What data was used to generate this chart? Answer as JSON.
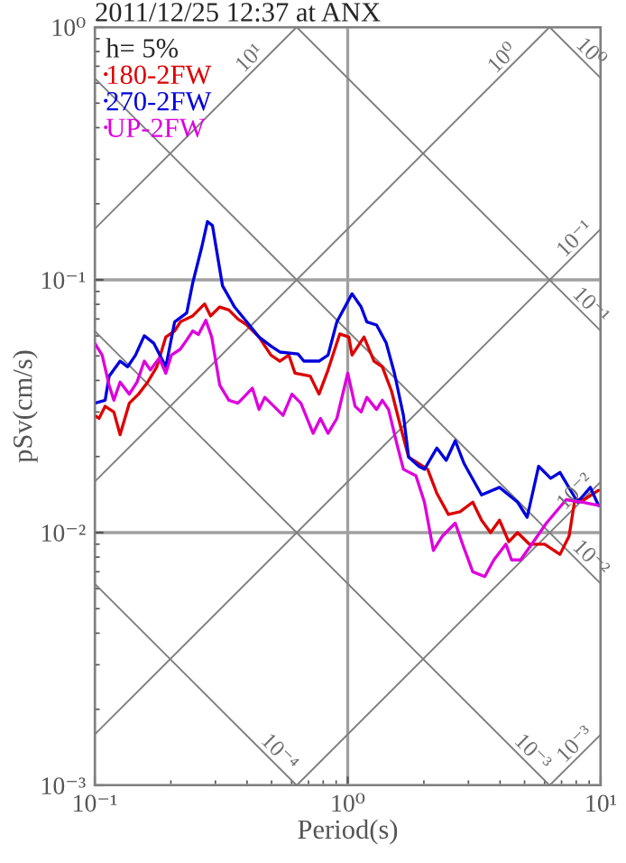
{
  "chart_data": {
    "type": "line",
    "title": "2011/12/25 12:37 at ANX",
    "xlabel": "Period(s)",
    "ylabel": "pSv(cm/s)",
    "legend_title": "h= 5%",
    "log": "xy",
    "grid": true,
    "legend": "top left",
    "xlim": [
      0.1,
      10
    ],
    "xticks": [
      {
        "value": 0.1,
        "label": "10⁻¹"
      },
      {
        "value": 1,
        "label": "10⁰"
      },
      {
        "value": 10,
        "label": "10¹"
      }
    ],
    "ylim": [
      0.001,
      1
    ],
    "yticks": [
      {
        "value": 0.001,
        "label": "10⁻³"
      },
      {
        "value": 0.01,
        "label": "10⁻²"
      },
      {
        "value": 0.1,
        "label": "10⁻¹"
      },
      {
        "value": 1,
        "label": "10⁰"
      }
    ],
    "series": [
      {
        "color": "#808080",
        "x": [
          0.1,
          0.628
        ],
        "values": [
          0.159,
          1
        ]
      },
      {
        "color": "#808080",
        "x": [
          0.1,
          6.28
        ],
        "values": [
          0.0159,
          1
        ]
      },
      {
        "color": "#808080",
        "x": [
          0.1,
          10
        ],
        "values": [
          0.00159,
          0.159
        ]
      },
      {
        "color": "#808080",
        "x": [
          0.628,
          10
        ],
        "values": [
          0.001,
          0.0159
        ]
      },
      {
        "color": "#808080",
        "x": [
          6.28,
          10
        ],
        "values": [
          0.001,
          0.00159
        ]
      },
      {
        "color": "#808080",
        "x": [
          6.28,
          10
        ],
        "values": [
          1,
          0.628
        ]
      },
      {
        "color": "#808080",
        "x": [
          0.628,
          10
        ],
        "values": [
          1,
          0.0628
        ]
      },
      {
        "color": "#808080",
        "x": [
          0.1,
          10
        ],
        "values": [
          0.628,
          0.00628
        ]
      },
      {
        "color": "#808080",
        "x": [
          0.1,
          6.28
        ],
        "values": [
          0.0628,
          0.001
        ]
      },
      {
        "color": "#808080",
        "x": [
          0.1,
          0.628
        ],
        "values": [
          0.00628,
          0.001
        ]
      },
      {
        "name": "180-2FW",
        "color": "#dd0000",
        "x": [
          0.1,
          0.104,
          0.11,
          0.119,
          0.126,
          0.137,
          0.149,
          0.162,
          0.176,
          0.191,
          0.207,
          0.218,
          0.244,
          0.272,
          0.287,
          0.312,
          0.339,
          0.368,
          0.399,
          0.446,
          0.497,
          0.539,
          0.585,
          0.619,
          0.711,
          0.77,
          0.836,
          0.93,
          1.01,
          1.04,
          1.16,
          1.27,
          1.37,
          1.49,
          1.62,
          1.74,
          2.07,
          2.25,
          2.5,
          2.78,
          3.12,
          3.38,
          3.67,
          3.98,
          4.33,
          4.69,
          5.22,
          6.0,
          6.9,
          7.5,
          7.9,
          8.6,
          9.8
        ],
        "values": [
          0.0291,
          0.0283,
          0.0316,
          0.03,
          0.0244,
          0.0325,
          0.0353,
          0.0394,
          0.0453,
          0.0594,
          0.0628,
          0.0682,
          0.072,
          0.0803,
          0.072,
          0.0781,
          0.076,
          0.07,
          0.0663,
          0.0594,
          0.0504,
          0.0477,
          0.0504,
          0.0427,
          0.0416,
          0.0353,
          0.044,
          0.0611,
          0.0594,
          0.0504,
          0.0594,
          0.0477,
          0.0453,
          0.0363,
          0.0261,
          0.0199,
          0.0178,
          0.0143,
          0.0118,
          0.0121,
          0.0132,
          0.0112,
          0.01,
          0.0112,
          0.0092,
          0.01,
          0.009,
          0.009,
          0.0082,
          0.0097,
          0.0135,
          0.0135,
          0.0147
        ]
      },
      {
        "name": "270-2FW",
        "color": "#0000dd",
        "x": [
          0.1,
          0.11,
          0.114,
          0.126,
          0.135,
          0.145,
          0.157,
          0.171,
          0.191,
          0.207,
          0.231,
          0.244,
          0.265,
          0.279,
          0.292,
          0.32,
          0.357,
          0.399,
          0.446,
          0.497,
          0.539,
          0.636,
          0.671,
          0.77,
          0.836,
          0.906,
          1.04,
          1.13,
          1.19,
          1.3,
          1.42,
          1.53,
          1.66,
          1.74,
          1.91,
          2.01,
          2.25,
          2.45,
          2.66,
          2.88,
          3.38,
          3.98,
          4.69,
          5.12,
          5.68,
          6.34,
          6.9,
          8.1,
          9.1,
          9.8
        ],
        "values": [
          0.0325,
          0.0334,
          0.0416,
          0.0477,
          0.0453,
          0.0504,
          0.0601,
          0.0562,
          0.0453,
          0.0682,
          0.074,
          0.0972,
          0.135,
          0.17,
          0.164,
          0.0947,
          0.0781,
          0.0682,
          0.0594,
          0.0547,
          0.0518,
          0.0509,
          0.0477,
          0.0477,
          0.0504,
          0.0682,
          0.0881,
          0.0781,
          0.0682,
          0.0663,
          0.0562,
          0.0427,
          0.0291,
          0.0199,
          0.0183,
          0.0178,
          0.0216,
          0.0193,
          0.0231,
          0.0188,
          0.0141,
          0.0151,
          0.0132,
          0.0115,
          0.0183,
          0.0164,
          0.0173,
          0.0132,
          0.0151,
          0.0128
        ]
      },
      {
        "name": "UP-2FW",
        "color": "#dd00dd",
        "x": [
          0.1,
          0.107,
          0.114,
          0.119,
          0.126,
          0.137,
          0.147,
          0.157,
          0.166,
          0.18,
          0.191,
          0.201,
          0.218,
          0.231,
          0.244,
          0.257,
          0.275,
          0.29,
          0.312,
          0.339,
          0.368,
          0.388,
          0.42,
          0.446,
          0.47,
          0.511,
          0.555,
          0.602,
          0.653,
          0.73,
          0.78,
          0.836,
          0.906,
          1.0,
          1.07,
          1.13,
          1.19,
          1.3,
          1.37,
          1.45,
          1.57,
          1.66,
          1.86,
          2.01,
          2.18,
          2.37,
          2.66,
          2.88,
          3.12,
          3.48,
          3.78,
          4.22,
          4.44,
          4.82,
          5.34,
          6.1,
          7.3,
          8.4,
          9.8
        ],
        "values": [
          0.0562,
          0.0504,
          0.0383,
          0.0334,
          0.0394,
          0.0353,
          0.0394,
          0.0477,
          0.044,
          0.049,
          0.0427,
          0.0504,
          0.0532,
          0.0578,
          0.0628,
          0.0608,
          0.0692,
          0.0594,
          0.0383,
          0.0334,
          0.0325,
          0.0343,
          0.0373,
          0.0307,
          0.0343,
          0.0316,
          0.0291,
          0.0353,
          0.0325,
          0.0247,
          0.0283,
          0.0247,
          0.0283,
          0.0427,
          0.0316,
          0.03,
          0.0343,
          0.0307,
          0.0334,
          0.0307,
          0.0221,
          0.0178,
          0.0168,
          0.0132,
          0.0085,
          0.0097,
          0.0109,
          0.0087,
          0.007,
          0.0067,
          0.0078,
          0.009,
          0.0078,
          0.0078,
          0.009,
          0.0109,
          0.0135,
          0.0132,
          0.0128
        ]
      }
    ],
    "annotations": [
      {
        "text": "10¹",
        "x": 0.44,
        "y": 0.7
      },
      {
        "text": "10⁰",
        "x": 4.4,
        "y": 0.7
      },
      {
        "text": "10⁰",
        "x": 8.5,
        "y": 0.739
      },
      {
        "text": "10⁻¹",
        "x": 8.5,
        "y": 0.135
      },
      {
        "text": "10⁻¹",
        "x": 8.5,
        "y": 0.0739
      },
      {
        "text": "10⁻²",
        "x": 8.5,
        "y": 0.0135
      },
      {
        "text": "10⁻²",
        "x": 8.5,
        "y": 0.00739
      },
      {
        "text": "10⁻³",
        "x": 8.5,
        "y": 0.00135
      },
      {
        "text": "10⁻³",
        "x": 5.0,
        "y": 0.00126
      },
      {
        "text": "10⁻⁴",
        "x": 0.5,
        "y": 0.00126
      }
    ]
  }
}
